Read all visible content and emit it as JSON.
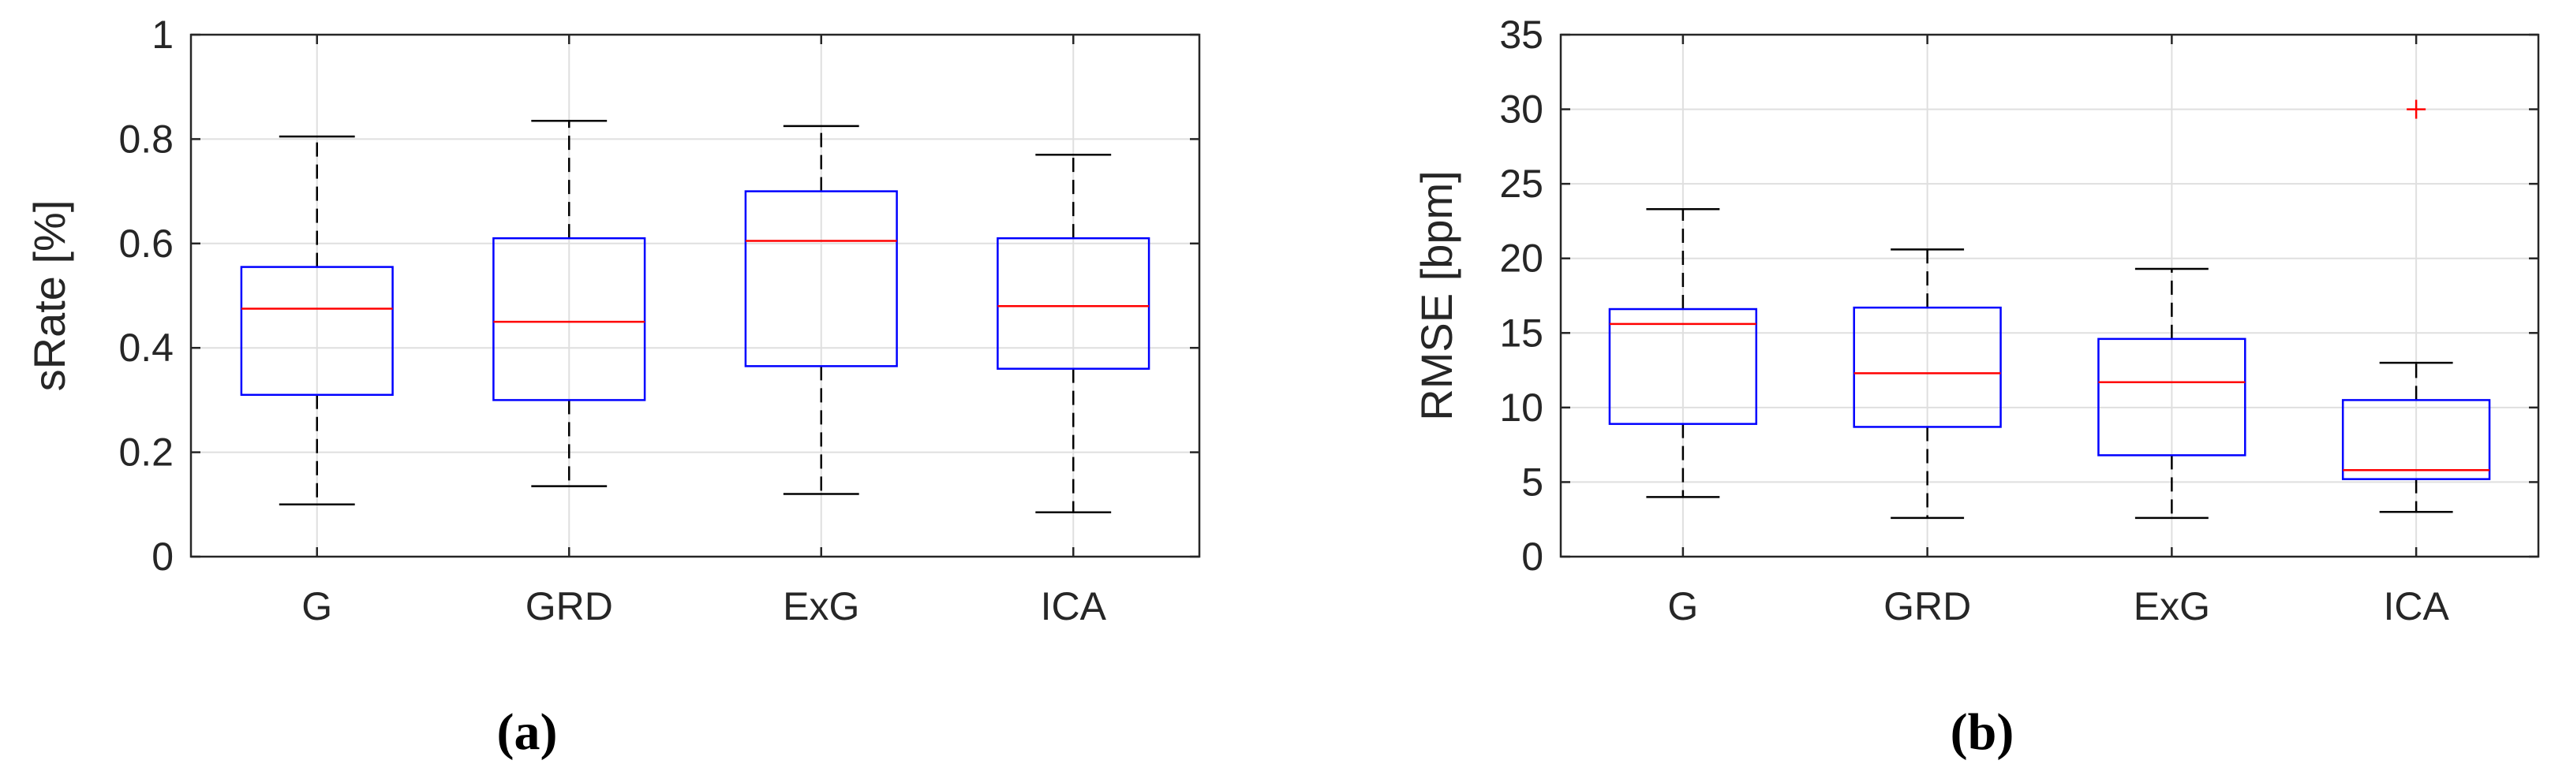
{
  "chart_data": [
    {
      "type": "box",
      "panel_label": "(a)",
      "ylabel": "sRate [%]",
      "categories": [
        "G",
        "GRD",
        "ExG",
        "ICA"
      ],
      "ylim": [
        0,
        1
      ],
      "yticks": [
        0,
        0.2,
        0.4,
        0.6,
        0.8,
        1
      ],
      "ytick_labels": [
        "0",
        "0.2",
        "0.4",
        "0.6",
        "0.8",
        "1"
      ],
      "grid": true,
      "boxes": [
        {
          "category": "G",
          "whisker_low": 0.1,
          "q1": 0.31,
          "median": 0.475,
          "q3": 0.555,
          "whisker_high": 0.805,
          "outliers": []
        },
        {
          "category": "GRD",
          "whisker_low": 0.135,
          "q1": 0.3,
          "median": 0.45,
          "q3": 0.61,
          "whisker_high": 0.835,
          "outliers": []
        },
        {
          "category": "ExG",
          "whisker_low": 0.12,
          "q1": 0.365,
          "median": 0.605,
          "q3": 0.7,
          "whisker_high": 0.825,
          "outliers": []
        },
        {
          "category": "ICA",
          "whisker_low": 0.085,
          "q1": 0.36,
          "median": 0.48,
          "q3": 0.61,
          "whisker_high": 0.77,
          "outliers": []
        }
      ]
    },
    {
      "type": "box",
      "panel_label": "(b)",
      "ylabel": "RMSE [bpm]",
      "categories": [
        "G",
        "GRD",
        "ExG",
        "ICA"
      ],
      "ylim": [
        0,
        35
      ],
      "yticks": [
        0,
        5,
        10,
        15,
        20,
        25,
        30,
        35
      ],
      "ytick_labels": [
        "0",
        "5",
        "10",
        "15",
        "20",
        "25",
        "30",
        "35"
      ],
      "grid": true,
      "boxes": [
        {
          "category": "G",
          "whisker_low": 4.0,
          "q1": 8.9,
          "median": 15.6,
          "q3": 16.6,
          "whisker_high": 23.3,
          "outliers": []
        },
        {
          "category": "GRD",
          "whisker_low": 2.6,
          "q1": 8.7,
          "median": 12.3,
          "q3": 16.7,
          "whisker_high": 20.6,
          "outliers": []
        },
        {
          "category": "ExG",
          "whisker_low": 2.6,
          "q1": 6.8,
          "median": 11.7,
          "q3": 14.6,
          "whisker_high": 19.3,
          "outliers": []
        },
        {
          "category": "ICA",
          "whisker_low": 3.0,
          "q1": 5.2,
          "median": 5.8,
          "q3": 10.5,
          "whisker_high": 13.0,
          "outliers": [
            30.0
          ]
        }
      ]
    }
  ],
  "colors": {
    "box": "#0000ff",
    "median": "#ff0000",
    "whisker": "#000000",
    "outlier": "#ff0000",
    "grid": "#dfdfdf",
    "axis": "#262626"
  }
}
